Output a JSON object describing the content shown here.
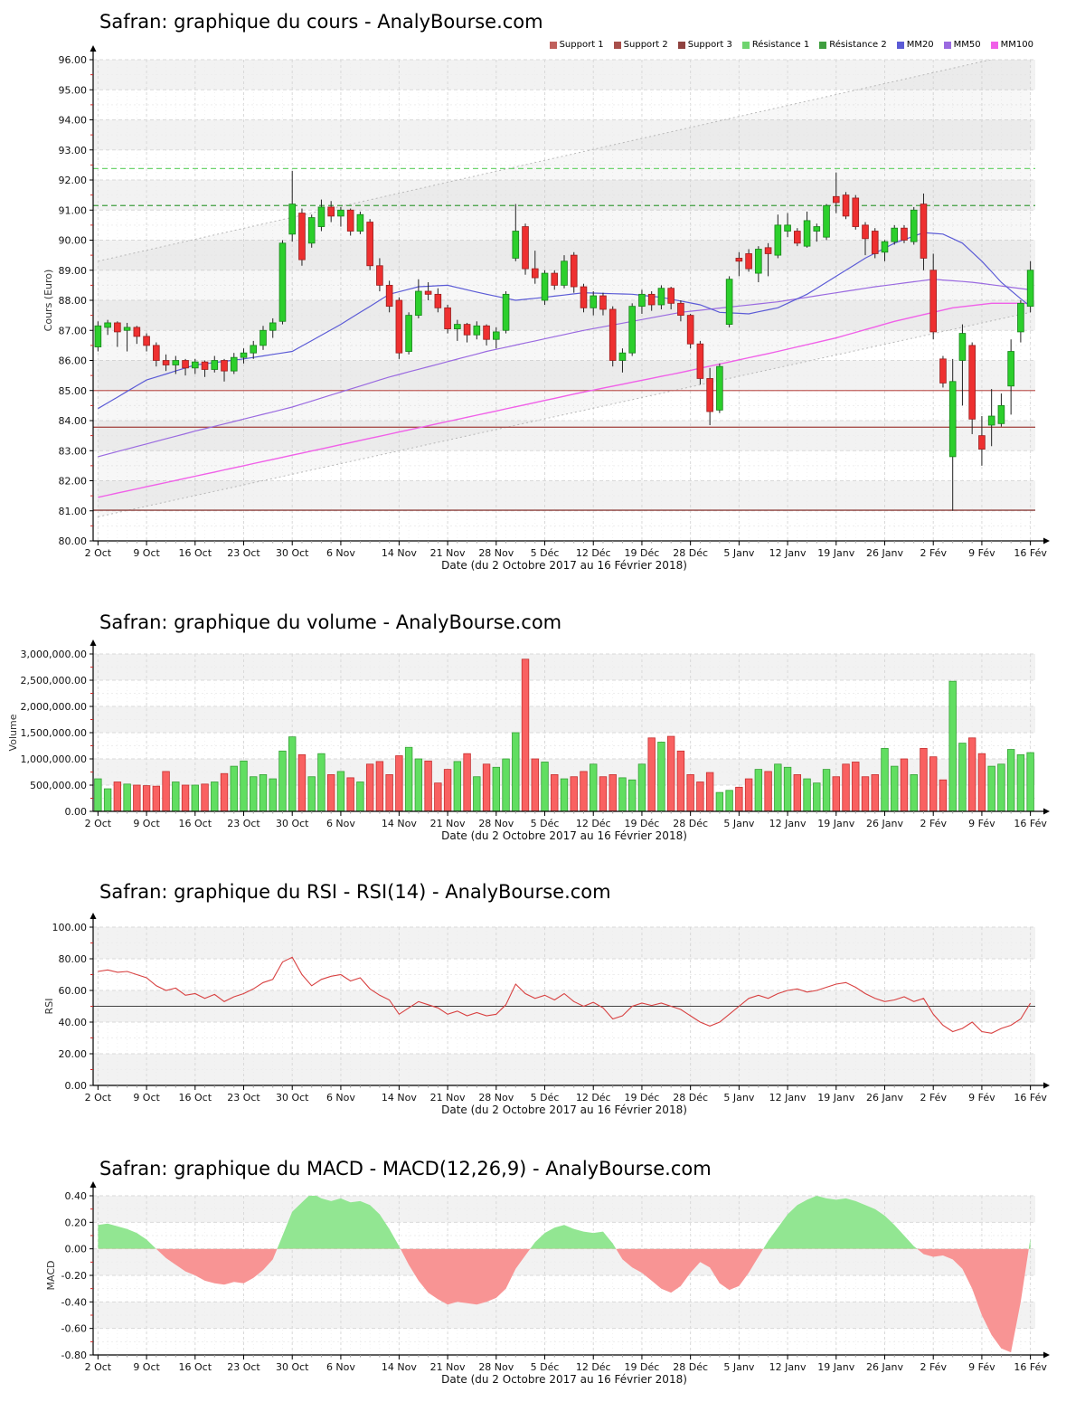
{
  "xlabel": "Date (du 2 Octobre 2017 au 16 Février 2018)",
  "xticks": {
    "labels": [
      "2 Oct",
      "9 Oct",
      "16 Oct",
      "23 Oct",
      "30 Oct",
      "6 Nov",
      "14 Nov",
      "21 Nov",
      "28 Nov",
      "5 Déc",
      "12 Déc",
      "19 Déc",
      "28 Déc",
      "5 Janv",
      "12 Janv",
      "19 Janv",
      "26 Janv",
      "2 Fév",
      "9 Fév",
      "16 Fév"
    ],
    "indices": [
      0,
      5,
      10,
      15,
      20,
      25,
      31,
      36,
      41,
      46,
      51,
      56,
      61,
      66,
      71,
      76,
      81,
      86,
      91,
      96
    ]
  },
  "legend": [
    {
      "label": "Support 1",
      "color": "#c0605c"
    },
    {
      "label": "Support 2",
      "color": "#a84f4b"
    },
    {
      "label": "Support 3",
      "color": "#8f423f"
    },
    {
      "label": "Résistance 1",
      "color": "#6fd46f"
    },
    {
      "label": "Résistance 2",
      "color": "#3f9e3f"
    },
    {
      "label": "MM20",
      "color": "#5b5bd6"
    },
    {
      "label": "MM50",
      "color": "#9a6ae0"
    },
    {
      "label": "MM100",
      "color": "#f060e8"
    }
  ],
  "colors": {
    "up": "#2ccf2c",
    "up_border": "#17821a",
    "down": "#ee3030",
    "down_border": "#9a1d1d",
    "volume_up": "#61de61",
    "volume_up_border": "#36a136",
    "volume_down": "#f96161",
    "volume_down_border": "#c53030",
    "rsi_line": "#d84040",
    "rsi_mid_line": "#444444",
    "macd_pos": "#92e692",
    "macd_neg": "#f89494",
    "mm20": "#5b5bd6",
    "mm50": "#9a6ae0",
    "mm100": "#f060e8",
    "support": [
      "#c0605c",
      "#a84f4b",
      "#8f423f"
    ],
    "resistance": [
      "#6fd46f",
      "#3f9e3f"
    ],
    "band": "#f2f2f2",
    "grid": "#d9d9d9",
    "grid_minor": "#ededed",
    "axis": "#000000",
    "minor_tick": "#cc2222",
    "session_tick": "#999999",
    "channel_line": "#b8b8b8",
    "channel_fill": "rgba(150,150,150,0.08)"
  },
  "chart_data": [
    {
      "type": "candlestick",
      "title": "Safran: graphique du cours - AnalyBourse.com",
      "ylabel": "Cours (Euro)",
      "ylim": [
        80,
        96
      ],
      "ystep": 1,
      "support_levels": [
        85.0,
        83.78,
        81.02
      ],
      "resistance_levels": [
        92.38,
        91.15
      ],
      "channel": {
        "upper": [
          [
            0,
            89.3
          ],
          [
            96,
            96.3
          ]
        ],
        "lower": [
          [
            0,
            80.8
          ],
          [
            96,
            87.6
          ]
        ]
      },
      "mm20": [
        [
          0,
          84.4
        ],
        [
          5,
          85.35
        ],
        [
          10,
          85.85
        ],
        [
          15,
          86.05
        ],
        [
          20,
          86.3
        ],
        [
          25,
          87.2
        ],
        [
          30,
          88.2
        ],
        [
          33,
          88.45
        ],
        [
          36,
          88.5
        ],
        [
          40,
          88.2
        ],
        [
          43,
          88.0
        ],
        [
          46,
          88.1
        ],
        [
          50,
          88.25
        ],
        [
          55,
          88.2
        ],
        [
          58,
          88.1
        ],
        [
          62,
          87.85
        ],
        [
          64,
          87.6
        ],
        [
          67,
          87.55
        ],
        [
          70,
          87.75
        ],
        [
          73,
          88.2
        ],
        [
          76,
          88.8
        ],
        [
          79,
          89.4
        ],
        [
          82,
          89.9
        ],
        [
          85,
          90.25
        ],
        [
          87,
          90.2
        ],
        [
          89,
          89.9
        ],
        [
          91,
          89.3
        ],
        [
          93,
          88.6
        ],
        [
          95,
          88.05
        ],
        [
          96,
          87.8
        ]
      ],
      "mm50": [
        [
          0,
          82.8
        ],
        [
          10,
          83.65
        ],
        [
          20,
          84.45
        ],
        [
          30,
          85.45
        ],
        [
          40,
          86.3
        ],
        [
          50,
          87.0
        ],
        [
          60,
          87.6
        ],
        [
          70,
          87.95
        ],
        [
          80,
          88.45
        ],
        [
          86,
          88.7
        ],
        [
          90,
          88.6
        ],
        [
          96,
          88.35
        ]
      ],
      "mm100": [
        [
          0,
          81.45
        ],
        [
          10,
          82.15
        ],
        [
          20,
          82.85
        ],
        [
          30,
          83.55
        ],
        [
          40,
          84.25
        ],
        [
          50,
          84.95
        ],
        [
          60,
          85.6
        ],
        [
          70,
          86.3
        ],
        [
          76,
          86.75
        ],
        [
          82,
          87.3
        ],
        [
          88,
          87.75
        ],
        [
          92,
          87.9
        ],
        [
          96,
          87.9
        ]
      ],
      "ohlc": [
        [
          86.45,
          87.3,
          86.3,
          87.15
        ],
        [
          87.1,
          87.35,
          86.85,
          87.25
        ],
        [
          87.25,
          87.3,
          86.45,
          86.95
        ],
        [
          87.0,
          87.25,
          86.3,
          87.1
        ],
        [
          87.1,
          87.15,
          86.55,
          86.8
        ],
        [
          86.8,
          86.9,
          86.3,
          86.5
        ],
        [
          86.5,
          86.6,
          85.8,
          86.0
        ],
        [
          86.0,
          86.2,
          85.65,
          85.85
        ],
        [
          85.85,
          86.15,
          85.55,
          86.0
        ],
        [
          86.0,
          86.05,
          85.5,
          85.75
        ],
        [
          85.75,
          86.05,
          85.55,
          85.95
        ],
        [
          85.95,
          86.0,
          85.45,
          85.7
        ],
        [
          85.7,
          86.15,
          85.6,
          86.0
        ],
        [
          86.0,
          86.05,
          85.3,
          85.65
        ],
        [
          85.65,
          86.25,
          85.55,
          86.1
        ],
        [
          86.1,
          86.4,
          85.9,
          86.25
        ],
        [
          86.25,
          86.65,
          86.05,
          86.5
        ],
        [
          86.5,
          87.15,
          86.35,
          87.0
        ],
        [
          87.0,
          87.4,
          86.75,
          87.25
        ],
        [
          87.3,
          90.0,
          87.2,
          89.9
        ],
        [
          90.2,
          92.3,
          89.95,
          91.2
        ],
        [
          90.9,
          91.05,
          89.15,
          89.35
        ],
        [
          89.9,
          90.85,
          89.75,
          90.75
        ],
        [
          90.45,
          91.35,
          90.3,
          91.1
        ],
        [
          91.1,
          91.3,
          90.6,
          90.8
        ],
        [
          90.8,
          91.1,
          90.45,
          91.0
        ],
        [
          91.0,
          91.05,
          90.15,
          90.3
        ],
        [
          90.3,
          90.95,
          90.2,
          90.85
        ],
        [
          90.6,
          90.7,
          89.0,
          89.15
        ],
        [
          89.15,
          89.4,
          88.3,
          88.5
        ],
        [
          88.5,
          88.65,
          87.6,
          87.8
        ],
        [
          88.0,
          88.1,
          86.05,
          86.25
        ],
        [
          86.3,
          87.6,
          86.2,
          87.5
        ],
        [
          87.5,
          88.7,
          87.4,
          88.3
        ],
        [
          88.3,
          88.6,
          88.0,
          88.2
        ],
        [
          88.2,
          88.4,
          87.6,
          87.75
        ],
        [
          87.75,
          87.85,
          86.9,
          87.05
        ],
        [
          87.05,
          87.35,
          86.65,
          87.2
        ],
        [
          87.2,
          87.25,
          86.6,
          86.85
        ],
        [
          86.85,
          87.3,
          86.7,
          87.15
        ],
        [
          87.15,
          87.2,
          86.5,
          86.7
        ],
        [
          86.7,
          87.1,
          86.4,
          86.95
        ],
        [
          87.0,
          88.3,
          86.9,
          88.2
        ],
        [
          89.4,
          91.2,
          89.3,
          90.3
        ],
        [
          90.45,
          90.55,
          88.85,
          89.05
        ],
        [
          89.05,
          89.65,
          88.55,
          88.75
        ],
        [
          88.0,
          89.0,
          87.85,
          88.9
        ],
        [
          88.9,
          89.0,
          88.35,
          88.5
        ],
        [
          88.5,
          89.5,
          88.4,
          89.3
        ],
        [
          89.5,
          89.6,
          88.25,
          88.45
        ],
        [
          88.45,
          88.55,
          87.6,
          87.75
        ],
        [
          87.75,
          88.3,
          87.5,
          88.15
        ],
        [
          88.15,
          88.25,
          87.5,
          87.7
        ],
        [
          87.7,
          87.8,
          85.8,
          86.0
        ],
        [
          86.0,
          86.4,
          85.6,
          86.25
        ],
        [
          86.25,
          87.9,
          86.15,
          87.8
        ],
        [
          87.8,
          88.35,
          87.55,
          88.2
        ],
        [
          88.2,
          88.3,
          87.65,
          87.85
        ],
        [
          87.85,
          88.5,
          87.7,
          88.4
        ],
        [
          88.4,
          88.45,
          87.7,
          87.9
        ],
        [
          87.9,
          88.0,
          87.3,
          87.5
        ],
        [
          87.5,
          87.55,
          86.4,
          86.55
        ],
        [
          86.55,
          86.65,
          85.2,
          85.4
        ],
        [
          85.4,
          85.75,
          83.85,
          84.3
        ],
        [
          84.35,
          85.9,
          84.25,
          85.8
        ],
        [
          87.2,
          88.8,
          87.1,
          88.7
        ],
        [
          89.4,
          89.6,
          88.8,
          89.3
        ],
        [
          89.55,
          89.7,
          88.95,
          89.05
        ],
        [
          88.9,
          89.8,
          88.6,
          89.7
        ],
        [
          89.75,
          89.9,
          88.8,
          89.55
        ],
        [
          89.5,
          90.85,
          89.4,
          90.5
        ],
        [
          90.3,
          90.9,
          90.1,
          90.5
        ],
        [
          90.3,
          90.4,
          89.8,
          89.9
        ],
        [
          89.8,
          90.95,
          89.75,
          90.65
        ],
        [
          90.3,
          90.55,
          89.95,
          90.45
        ],
        [
          90.1,
          91.2,
          90.0,
          91.15
        ],
        [
          91.45,
          92.25,
          90.9,
          91.25
        ],
        [
          91.5,
          91.6,
          90.7,
          90.8
        ],
        [
          91.4,
          91.5,
          90.35,
          90.45
        ],
        [
          90.5,
          90.6,
          89.5,
          90.05
        ],
        [
          90.3,
          90.4,
          89.4,
          89.55
        ],
        [
          89.6,
          90.0,
          89.3,
          89.95
        ],
        [
          89.95,
          90.5,
          89.85,
          90.4
        ],
        [
          90.4,
          90.5,
          89.9,
          90.0
        ],
        [
          89.95,
          91.1,
          89.85,
          91.0
        ],
        [
          91.2,
          91.55,
          89.0,
          89.4
        ],
        [
          89.0,
          89.55,
          86.7,
          86.95
        ],
        [
          86.05,
          86.15,
          85.1,
          85.25
        ],
        [
          82.8,
          86.05,
          81.0,
          85.3
        ],
        [
          86.0,
          87.2,
          84.5,
          86.9
        ],
        [
          86.5,
          86.6,
          83.55,
          84.05
        ],
        [
          83.5,
          84.15,
          82.5,
          83.05
        ],
        [
          83.85,
          85.05,
          83.15,
          84.15
        ],
        [
          83.9,
          84.9,
          83.8,
          84.5
        ],
        [
          85.15,
          86.7,
          84.2,
          86.3
        ],
        [
          86.95,
          88.0,
          86.6,
          87.9
        ],
        [
          87.8,
          89.3,
          87.6,
          89.0
        ]
      ]
    },
    {
      "type": "bar",
      "title": "Safran: graphique du volume - AnalyBourse.com",
      "ylabel": "Volume",
      "ylim": [
        0,
        3000000
      ],
      "ystep": 500000,
      "values": [
        620000,
        430000,
        560000,
        520000,
        500000,
        490000,
        480000,
        760000,
        560000,
        500000,
        500000,
        520000,
        560000,
        720000,
        860000,
        960000,
        660000,
        700000,
        620000,
        1150000,
        1420000,
        1080000,
        660000,
        1100000,
        700000,
        760000,
        640000,
        560000,
        900000,
        950000,
        700000,
        1060000,
        1220000,
        1000000,
        960000,
        540000,
        800000,
        950000,
        1100000,
        660000,
        900000,
        840000,
        1000000,
        1500000,
        2900000,
        1000000,
        940000,
        700000,
        620000,
        660000,
        760000,
        900000,
        660000,
        700000,
        640000,
        600000,
        900000,
        1400000,
        1320000,
        1430000,
        1150000,
        700000,
        560000,
        740000,
        360000,
        400000,
        460000,
        620000,
        800000,
        760000,
        900000,
        840000,
        700000,
        620000,
        540000,
        800000,
        660000,
        900000,
        940000,
        660000,
        700000,
        1200000,
        860000,
        1000000,
        700000,
        1200000,
        1040000,
        600000,
        2480000,
        1300000,
        1400000,
        1100000,
        860000,
        900000,
        1180000,
        1080000,
        1120000
      ]
    },
    {
      "type": "line",
      "title": "Safran: graphique du RSI - RSI(14) - AnalyBourse.com",
      "ylabel": "RSI",
      "ylim": [
        0,
        100
      ],
      "ystep": 20,
      "hline": 50,
      "values": [
        72,
        73,
        71.5,
        72,
        70,
        68,
        63,
        60,
        61.5,
        57,
        58,
        55,
        57.5,
        53,
        56,
        58,
        61,
        65,
        67,
        78,
        81,
        70,
        63,
        67,
        69,
        70,
        66,
        68,
        61,
        57,
        54,
        45,
        49,
        53,
        51,
        49,
        45,
        47,
        44,
        46,
        44,
        45,
        51,
        64,
        58,
        55,
        57,
        54,
        58,
        53,
        50,
        52.5,
        49,
        42,
        44,
        50,
        52,
        50.5,
        52,
        50,
        48,
        44,
        40,
        37.5,
        40,
        45,
        50,
        55,
        57,
        55,
        58,
        60,
        61,
        59,
        60,
        62,
        64,
        65,
        62,
        58,
        55,
        53,
        54,
        56,
        53,
        55,
        45,
        38,
        34,
        36,
        40,
        34,
        33,
        36,
        38,
        42,
        52
      ]
    },
    {
      "type": "area",
      "title": "Safran: graphique du MACD - MACD(12,26,9) - AnalyBourse.com",
      "ylabel": "MACD",
      "ylim": [
        -0.8,
        0.4
      ],
      "ystep": 0.2,
      "values": [
        0.18,
        0.19,
        0.17,
        0.15,
        0.12,
        0.07,
        0.0,
        -0.07,
        -0.12,
        -0.17,
        -0.2,
        -0.24,
        -0.26,
        -0.27,
        -0.25,
        -0.26,
        -0.22,
        -0.16,
        -0.08,
        0.1,
        0.28,
        0.35,
        0.42,
        0.38,
        0.36,
        0.38,
        0.35,
        0.36,
        0.33,
        0.26,
        0.15,
        0.02,
        -0.12,
        -0.24,
        -0.33,
        -0.38,
        -0.42,
        -0.4,
        -0.41,
        -0.42,
        -0.4,
        -0.37,
        -0.3,
        -0.15,
        -0.05,
        0.05,
        0.12,
        0.16,
        0.18,
        0.15,
        0.13,
        0.12,
        0.13,
        0.04,
        -0.08,
        -0.14,
        -0.18,
        -0.24,
        -0.3,
        -0.33,
        -0.28,
        -0.18,
        -0.1,
        -0.14,
        -0.26,
        -0.31,
        -0.28,
        -0.18,
        -0.06,
        0.06,
        0.16,
        0.26,
        0.33,
        0.37,
        0.4,
        0.38,
        0.37,
        0.38,
        0.36,
        0.33,
        0.3,
        0.25,
        0.18,
        0.1,
        0.02,
        -0.04,
        -0.06,
        -0.05,
        -0.08,
        -0.15,
        -0.3,
        -0.5,
        -0.65,
        -0.75,
        -0.78,
        -0.4,
        0.08
      ]
    }
  ]
}
